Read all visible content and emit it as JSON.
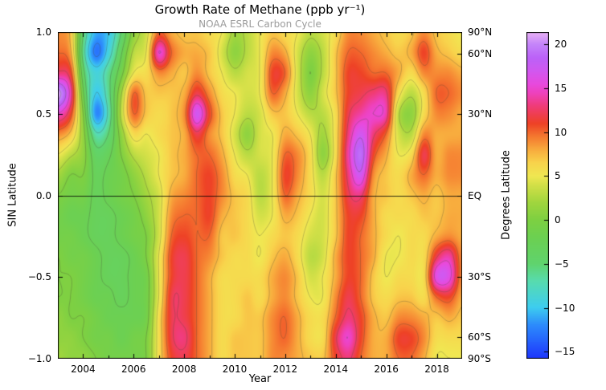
{
  "header": {
    "title": "Growth Rate of Methane (ppb yr⁻¹)",
    "subtitle": "NOAA ESRL Carbon Cycle",
    "subtitle_color": "#9b9b9b"
  },
  "chart_data": {
    "type": "heatmap",
    "title": "Growth Rate of Methane (ppb yr⁻¹)",
    "subtitle": "NOAA ESRL Carbon Cycle",
    "units": "ppb yr⁻¹",
    "xlabel": "Year",
    "ylabel_left": "SIN Latitude",
    "ylabel_right": "Degrees Latitude",
    "x_range": [
      2003,
      2019
    ],
    "y_range_sin": [
      -1,
      1
    ],
    "grid_on": false,
    "legend_position": "colorbar-right",
    "x_ticks": [
      {
        "label": "2004",
        "value": 2004
      },
      {
        "label": "2006",
        "value": 2006
      },
      {
        "label": "2008",
        "value": 2008
      },
      {
        "label": "2010",
        "value": 2010
      },
      {
        "label": "2012",
        "value": 2012
      },
      {
        "label": "2014",
        "value": 2014
      },
      {
        "label": "2016",
        "value": 2016
      },
      {
        "label": "2018",
        "value": 2018
      }
    ],
    "x_minor_ticks": [
      2003,
      2005,
      2007,
      2009,
      2011,
      2013,
      2015,
      2017,
      2019
    ],
    "y_ticks_left": [
      {
        "label": "1.0",
        "value": 1.0
      },
      {
        "label": "0.5",
        "value": 0.5
      },
      {
        "label": "0.0",
        "value": 0.0
      },
      {
        "label": "−0.5",
        "value": -0.5
      },
      {
        "label": "−1.0",
        "value": -1.0
      }
    ],
    "y_ticks_right": [
      {
        "label": "90°N",
        "sin": 1.0
      },
      {
        "label": "60°N",
        "sin": 0.866
      },
      {
        "label": "30°N",
        "sin": 0.5
      },
      {
        "label": "EQ",
        "sin": 0.0
      },
      {
        "label": "30°S",
        "sin": -0.5
      },
      {
        "label": "60°S",
        "sin": -0.866
      },
      {
        "label": "90°S",
        "sin": -1.0
      }
    ],
    "equator_line_sin": 0.0,
    "colorbar": {
      "vmin": -15.8,
      "vmax": 21.4,
      "ticks": [
        {
          "label": "20",
          "value": 20
        },
        {
          "label": "15",
          "value": 15
        },
        {
          "label": "10",
          "value": 10
        },
        {
          "label": "5",
          "value": 5
        },
        {
          "label": "0",
          "value": 0
        },
        {
          "label": "−5",
          "value": -5
        },
        {
          "label": "−10",
          "value": -10
        },
        {
          "label": "−15",
          "value": -15
        }
      ]
    },
    "colormap_stops": [
      [
        -15.8,
        [
          30,
          55,
          252
        ]
      ],
      [
        -12,
        [
          45,
          140,
          252
        ]
      ],
      [
        -10,
        [
          62,
          205,
          240
        ]
      ],
      [
        -7,
        [
          88,
          220,
          175
        ]
      ],
      [
        -5,
        [
          96,
          212,
          110
        ]
      ],
      [
        -2,
        [
          108,
          208,
          82
        ]
      ],
      [
        0,
        [
          126,
          208,
          66
        ]
      ],
      [
        2,
        [
          162,
          214,
          62
        ]
      ],
      [
        4,
        [
          212,
          224,
          72
        ]
      ],
      [
        5,
        [
          240,
          232,
          82
        ]
      ],
      [
        6.5,
        [
          248,
          212,
          76
        ]
      ],
      [
        8,
        [
          248,
          172,
          62
        ]
      ],
      [
        9.5,
        [
          245,
          122,
          48
        ]
      ],
      [
        11,
        [
          238,
          66,
          38
        ]
      ],
      [
        13,
        [
          240,
          60,
          120
        ]
      ],
      [
        14.5,
        [
          238,
          66,
          190
        ]
      ],
      [
        15.5,
        [
          232,
          74,
          222
        ]
      ],
      [
        17,
        [
          210,
          88,
          240
        ]
      ],
      [
        18.5,
        [
          188,
          98,
          248
        ]
      ],
      [
        20,
        [
          196,
          132,
          250
        ]
      ],
      [
        21.4,
        [
          232,
          178,
          246
        ]
      ]
    ],
    "contour_levels_solid": [
      0,
      2.5,
      5,
      7.5,
      10,
      12.5,
      15,
      17.5,
      20
    ],
    "contour_levels_dashed": [
      -12.5,
      -10,
      -7.5,
      -5,
      -2.5
    ],
    "grid": {
      "x_years": [
        2003,
        2003.5,
        2004,
        2004.5,
        2005,
        2005.5,
        2006,
        2006.5,
        2007,
        2007.5,
        2008,
        2008.5,
        2009,
        2009.5,
        2010,
        2010.5,
        2011,
        2011.5,
        2012,
        2012.5,
        2013,
        2013.5,
        2014,
        2014.5,
        2015,
        2015.5,
        2016,
        2016.5,
        2017,
        2017.5,
        2018,
        2018.5,
        2019
      ],
      "y_sinlat": [
        1.0,
        0.875,
        0.75,
        0.625,
        0.5,
        0.375,
        0.25,
        0.125,
        0.0,
        -0.125,
        -0.25,
        -0.375,
        -0.5,
        -0.625,
        -0.75,
        -0.875,
        -1.0
      ],
      "values": [
        [
          9,
          7,
          -5,
          -11,
          -10,
          -5,
          1,
          4,
          10,
          8,
          7,
          7,
          6,
          5,
          2,
          3,
          5,
          7,
          6,
          5,
          3,
          4,
          6,
          9,
          9,
          8,
          7,
          6,
          7,
          9,
          7,
          6,
          5
        ],
        [
          10,
          8,
          -6,
          -13,
          -9,
          -3,
          3,
          5,
          15,
          10,
          8,
          8,
          7,
          4,
          1,
          3,
          5,
          9,
          8,
          4,
          1,
          3,
          7,
          10,
          10,
          9,
          8,
          7,
          8,
          11,
          8,
          7,
          6
        ],
        [
          13,
          11,
          -4,
          -9,
          -6,
          -1,
          5,
          6,
          9,
          8,
          7,
          9,
          7,
          5,
          3,
          4,
          5,
          11,
          10,
          4,
          0,
          3,
          7,
          11,
          11,
          10,
          10,
          8,
          6,
          9,
          9,
          9,
          8
        ],
        [
          21,
          14,
          -2,
          -10,
          -6,
          2,
          10,
          7,
          7,
          7,
          8,
          12,
          9,
          6,
          5,
          4,
          5,
          10,
          8,
          4,
          1,
          4,
          7,
          11,
          12,
          13,
          13,
          6,
          3,
          6,
          10,
          10,
          9
        ],
        [
          15,
          11,
          0,
          -12,
          -7,
          3,
          10,
          7,
          6,
          7,
          9,
          17,
          11,
          7,
          5,
          3,
          4,
          7,
          7,
          5,
          3,
          3,
          6,
          12,
          14,
          15,
          14,
          3,
          1,
          6,
          9,
          9,
          8
        ],
        [
          9,
          7,
          1,
          -7,
          -5,
          1,
          6,
          5,
          6,
          7,
          8,
          12,
          9,
          7,
          4,
          1,
          4,
          5,
          8,
          7,
          5,
          2,
          6,
          13,
          17,
          13,
          10,
          4,
          3,
          9,
          8,
          8,
          8
        ],
        [
          5,
          3,
          1,
          -4,
          -3,
          0,
          3,
          4,
          5,
          7,
          8,
          10,
          10,
          8,
          5,
          3,
          4,
          5,
          10,
          9,
          6,
          1,
          6,
          14,
          19,
          11,
          8,
          5,
          6,
          12,
          8,
          9,
          9
        ],
        [
          2,
          0,
          0,
          -3,
          -2,
          -1,
          1,
          3,
          5,
          7,
          8,
          10,
          11,
          9,
          6,
          5,
          3,
          5,
          11,
          9,
          6,
          3,
          7,
          13,
          17,
          9,
          7,
          6,
          8,
          10,
          8,
          9,
          9
        ],
        [
          0,
          -1,
          -1,
          -3,
          -2,
          -1,
          0,
          2,
          4,
          8,
          9,
          10,
          11,
          9,
          7,
          6,
          3,
          5,
          10,
          8,
          6,
          4,
          7,
          12,
          13,
          8,
          7,
          6,
          7,
          8,
          7,
          8,
          8
        ],
        [
          -1,
          -2,
          -2,
          -3,
          -3,
          -2,
          -1,
          1,
          4,
          9,
          10,
          10,
          11,
          8,
          7,
          6,
          4,
          5,
          8,
          7,
          5,
          4,
          7,
          11,
          11,
          8,
          6,
          6,
          6,
          7,
          7,
          8,
          8
        ],
        [
          -1,
          -1,
          -2,
          -3,
          -3,
          -2,
          -1,
          0,
          4,
          10,
          11,
          10,
          10,
          7,
          7,
          6,
          5,
          6,
          7,
          6,
          4,
          4,
          7,
          11,
          10,
          8,
          6,
          5,
          6,
          6,
          8,
          9,
          8
        ],
        [
          0,
          -1,
          -1,
          -2,
          -3,
          -3,
          -2,
          0,
          5,
          11,
          12,
          10,
          9,
          7,
          6,
          6,
          5,
          7,
          8,
          6,
          3,
          4,
          8,
          11,
          10,
          8,
          5,
          5,
          6,
          6,
          12,
          14,
          9
        ],
        [
          0,
          0,
          -1,
          -2,
          -3,
          -3,
          -2,
          -1,
          5,
          11,
          12,
          10,
          8,
          6,
          6,
          6,
          6,
          8,
          9,
          7,
          4,
          5,
          8,
          11,
          10,
          7,
          5,
          6,
          6,
          6,
          16,
          16,
          9
        ],
        [
          0,
          0,
          -1,
          -2,
          -2,
          -3,
          -2,
          -1,
          5,
          12,
          12,
          10,
          8,
          6,
          6,
          7,
          6,
          8,
          9,
          7,
          5,
          5,
          9,
          12,
          10,
          7,
          6,
          7,
          7,
          6,
          10,
          11,
          8
        ],
        [
          1,
          0,
          0,
          -1,
          -2,
          -2,
          -2,
          -1,
          6,
          12,
          12,
          10,
          8,
          6,
          6,
          7,
          7,
          9,
          10,
          8,
          6,
          6,
          10,
          13,
          11,
          8,
          7,
          9,
          9,
          8,
          7,
          8,
          7
        ],
        [
          1,
          1,
          0,
          -1,
          -1,
          -2,
          -1,
          0,
          6,
          12,
          13,
          10,
          8,
          6,
          7,
          7,
          7,
          9,
          10,
          8,
          6,
          6,
          12,
          15,
          11,
          8,
          8,
          11,
          11,
          9,
          6,
          6,
          6
        ],
        [
          2,
          1,
          1,
          0,
          -1,
          -1,
          -1,
          0,
          6,
          11,
          12,
          10,
          8,
          6,
          7,
          7,
          7,
          9,
          9,
          8,
          7,
          7,
          11,
          13,
          10,
          8,
          8,
          10,
          10,
          8,
          5,
          5,
          5
        ]
      ]
    }
  }
}
